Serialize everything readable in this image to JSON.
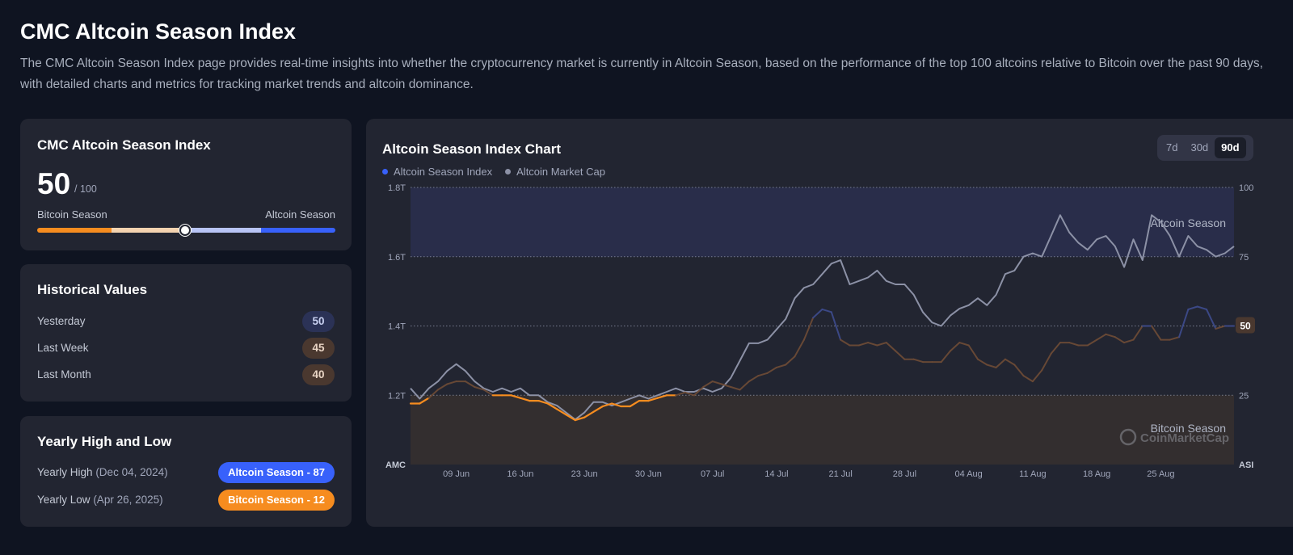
{
  "page": {
    "title": "CMC Altcoin Season Index",
    "description": "The CMC Altcoin Season Index page provides real-time insights into whether the cryptocurrency market is currently in Altcoin Season, based on the performance of the top 100 altcoins relative to Bitcoin over the past 90 days, with detailed charts and metrics for tracking market trends and altcoin dominance."
  },
  "index_card": {
    "title": "CMC Altcoin Season Index",
    "value": "50",
    "max": "/ 100",
    "left_label": "Bitcoin Season",
    "right_label": "Altcoin Season",
    "level": 0.5
  },
  "historical": {
    "title": "Historical Values",
    "rows": [
      {
        "label": "Yesterday",
        "value": "50"
      },
      {
        "label": "Last Week",
        "value": "45"
      },
      {
        "label": "Last Month",
        "value": "40"
      }
    ]
  },
  "yearly": {
    "title": "Yearly High and Low",
    "high": {
      "label": "Yearly High",
      "date": "(Dec 04, 2024)",
      "pill": "Altcoin Season - 87"
    },
    "low": {
      "label": "Yearly Low",
      "date": "(Apr 26, 2025)",
      "pill": "Bitcoin Season - 12"
    }
  },
  "chart": {
    "title": "Altcoin Season Index Chart",
    "ranges": [
      "7d",
      "30d",
      "90d"
    ],
    "active_range": "90d"
  },
  "colors": {
    "accent_blue": "#3861fb",
    "accent_orange": "#f68c1f",
    "market_cap_line": "#8c91a6",
    "altcoin_zone": "#2a2f4f",
    "bitcoin_zone": "#36302f"
  },
  "chart_data": {
    "type": "line",
    "legend": [
      "Altcoin Season Index",
      "Altcoin Market Cap"
    ],
    "x_ticks": [
      "09 Jun",
      "16 Jun",
      "23 Jun",
      "30 Jun",
      "07 Jul",
      "14 Jul",
      "21 Jul",
      "28 Jul",
      "04 Aug",
      "11 Aug",
      "18 Aug",
      "25 Aug"
    ],
    "y_left_ticks": [
      "1.8T",
      "1.6T",
      "1.4T",
      "1.2T"
    ],
    "y_left_axis_label": "AMC",
    "y_right_ticks": [
      "100",
      "75",
      "50",
      "25"
    ],
    "y_right_axis_label": "ASI",
    "zone_labels": {
      "top": "Altcoin Season",
      "bottom": "Bitcoin Season"
    },
    "current_value_label": "50",
    "watermark": "CoinMarketCap",
    "left_range": [
      1.0,
      1.8
    ],
    "right_range": [
      0,
      100
    ],
    "x_range": [
      "2025-06-04",
      "2025-09-02"
    ],
    "series": [
      {
        "name": "Altcoin Season Index",
        "points": [
          [
            "2025-06-04",
            22
          ],
          [
            "2025-06-05",
            22
          ],
          [
            "2025-06-06",
            24
          ],
          [
            "2025-06-07",
            27
          ],
          [
            "2025-06-08",
            29
          ],
          [
            "2025-06-09",
            30
          ],
          [
            "2025-06-10",
            30
          ],
          [
            "2025-06-11",
            28
          ],
          [
            "2025-06-12",
            27
          ],
          [
            "2025-06-13",
            25
          ],
          [
            "2025-06-14",
            25
          ],
          [
            "2025-06-15",
            25
          ],
          [
            "2025-06-16",
            24
          ],
          [
            "2025-06-17",
            23
          ],
          [
            "2025-06-18",
            23
          ],
          [
            "2025-06-19",
            22
          ],
          [
            "2025-06-20",
            20
          ],
          [
            "2025-06-21",
            18
          ],
          [
            "2025-06-22",
            16
          ],
          [
            "2025-06-23",
            17
          ],
          [
            "2025-06-24",
            19
          ],
          [
            "2025-06-25",
            21
          ],
          [
            "2025-06-26",
            22
          ],
          [
            "2025-06-27",
            21
          ],
          [
            "2025-06-28",
            21
          ],
          [
            "2025-06-29",
            23
          ],
          [
            "2025-06-30",
            23
          ],
          [
            "2025-07-01",
            24
          ],
          [
            "2025-07-02",
            25
          ],
          [
            "2025-07-03",
            25
          ],
          [
            "2025-07-04",
            26
          ],
          [
            "2025-07-05",
            25
          ],
          [
            "2025-07-06",
            28
          ],
          [
            "2025-07-07",
            30
          ],
          [
            "2025-07-08",
            29
          ],
          [
            "2025-07-09",
            28
          ],
          [
            "2025-07-10",
            27
          ],
          [
            "2025-07-11",
            30
          ],
          [
            "2025-07-12",
            32
          ],
          [
            "2025-07-13",
            33
          ],
          [
            "2025-07-14",
            35
          ],
          [
            "2025-07-15",
            36
          ],
          [
            "2025-07-16",
            39
          ],
          [
            "2025-07-17",
            45
          ],
          [
            "2025-07-18",
            53
          ],
          [
            "2025-07-19",
            56
          ],
          [
            "2025-07-20",
            55
          ],
          [
            "2025-07-21",
            45
          ],
          [
            "2025-07-22",
            43
          ],
          [
            "2025-07-23",
            43
          ],
          [
            "2025-07-24",
            44
          ],
          [
            "2025-07-25",
            43
          ],
          [
            "2025-07-26",
            44
          ],
          [
            "2025-07-27",
            41
          ],
          [
            "2025-07-28",
            38
          ],
          [
            "2025-07-29",
            38
          ],
          [
            "2025-07-30",
            37
          ],
          [
            "2025-07-31",
            37
          ],
          [
            "2025-08-01",
            37
          ],
          [
            "2025-08-02",
            41
          ],
          [
            "2025-08-03",
            44
          ],
          [
            "2025-08-04",
            43
          ],
          [
            "2025-08-05",
            38
          ],
          [
            "2025-08-06",
            36
          ],
          [
            "2025-08-07",
            35
          ],
          [
            "2025-08-08",
            38
          ],
          [
            "2025-08-09",
            36
          ],
          [
            "2025-08-10",
            32
          ],
          [
            "2025-08-11",
            30
          ],
          [
            "2025-08-12",
            34
          ],
          [
            "2025-08-13",
            40
          ],
          [
            "2025-08-14",
            44
          ],
          [
            "2025-08-15",
            44
          ],
          [
            "2025-08-16",
            43
          ],
          [
            "2025-08-17",
            43
          ],
          [
            "2025-08-18",
            45
          ],
          [
            "2025-08-19",
            47
          ],
          [
            "2025-08-20",
            46
          ],
          [
            "2025-08-21",
            44
          ],
          [
            "2025-08-22",
            45
          ],
          [
            "2025-08-23",
            50
          ],
          [
            "2025-08-24",
            50
          ],
          [
            "2025-08-25",
            45
          ],
          [
            "2025-08-26",
            45
          ],
          [
            "2025-08-27",
            46
          ],
          [
            "2025-08-28",
            56
          ],
          [
            "2025-08-29",
            57
          ],
          [
            "2025-08-30",
            56
          ],
          [
            "2025-08-31",
            49
          ],
          [
            "2025-09-01",
            50
          ],
          [
            "2025-09-02",
            50
          ]
        ]
      },
      {
        "name": "Altcoin Market Cap",
        "points": [
          [
            "2025-06-04",
            1.22
          ],
          [
            "2025-06-05",
            1.19
          ],
          [
            "2025-06-06",
            1.22
          ],
          [
            "2025-06-07",
            1.24
          ],
          [
            "2025-06-08",
            1.27
          ],
          [
            "2025-06-09",
            1.29
          ],
          [
            "2025-06-10",
            1.27
          ],
          [
            "2025-06-11",
            1.24
          ],
          [
            "2025-06-12",
            1.22
          ],
          [
            "2025-06-13",
            1.21
          ],
          [
            "2025-06-14",
            1.22
          ],
          [
            "2025-06-15",
            1.21
          ],
          [
            "2025-06-16",
            1.22
          ],
          [
            "2025-06-17",
            1.2
          ],
          [
            "2025-06-18",
            1.2
          ],
          [
            "2025-06-19",
            1.18
          ],
          [
            "2025-06-20",
            1.17
          ],
          [
            "2025-06-21",
            1.15
          ],
          [
            "2025-06-22",
            1.13
          ],
          [
            "2025-06-23",
            1.15
          ],
          [
            "2025-06-24",
            1.18
          ],
          [
            "2025-06-25",
            1.18
          ],
          [
            "2025-06-26",
            1.17
          ],
          [
            "2025-06-27",
            1.18
          ],
          [
            "2025-06-28",
            1.19
          ],
          [
            "2025-06-29",
            1.2
          ],
          [
            "2025-06-30",
            1.19
          ],
          [
            "2025-07-01",
            1.2
          ],
          [
            "2025-07-02",
            1.21
          ],
          [
            "2025-07-03",
            1.22
          ],
          [
            "2025-07-04",
            1.21
          ],
          [
            "2025-07-05",
            1.21
          ],
          [
            "2025-07-06",
            1.22
          ],
          [
            "2025-07-07",
            1.21
          ],
          [
            "2025-07-08",
            1.22
          ],
          [
            "2025-07-09",
            1.25
          ],
          [
            "2025-07-10",
            1.3
          ],
          [
            "2025-07-11",
            1.35
          ],
          [
            "2025-07-12",
            1.35
          ],
          [
            "2025-07-13",
            1.36
          ],
          [
            "2025-07-14",
            1.39
          ],
          [
            "2025-07-15",
            1.42
          ],
          [
            "2025-07-16",
            1.48
          ],
          [
            "2025-07-17",
            1.51
          ],
          [
            "2025-07-18",
            1.52
          ],
          [
            "2025-07-19",
            1.55
          ],
          [
            "2025-07-20",
            1.58
          ],
          [
            "2025-07-21",
            1.59
          ],
          [
            "2025-07-22",
            1.52
          ],
          [
            "2025-07-23",
            1.53
          ],
          [
            "2025-07-24",
            1.54
          ],
          [
            "2025-07-25",
            1.56
          ],
          [
            "2025-07-26",
            1.53
          ],
          [
            "2025-07-27",
            1.52
          ],
          [
            "2025-07-28",
            1.52
          ],
          [
            "2025-07-29",
            1.49
          ],
          [
            "2025-07-30",
            1.44
          ],
          [
            "2025-07-31",
            1.41
          ],
          [
            "2025-08-01",
            1.4
          ],
          [
            "2025-08-02",
            1.43
          ],
          [
            "2025-08-03",
            1.45
          ],
          [
            "2025-08-04",
            1.46
          ],
          [
            "2025-08-05",
            1.48
          ],
          [
            "2025-08-06",
            1.46
          ],
          [
            "2025-08-07",
            1.49
          ],
          [
            "2025-08-08",
            1.55
          ],
          [
            "2025-08-09",
            1.56
          ],
          [
            "2025-08-10",
            1.6
          ],
          [
            "2025-08-11",
            1.61
          ],
          [
            "2025-08-12",
            1.6
          ],
          [
            "2025-08-13",
            1.66
          ],
          [
            "2025-08-14",
            1.72
          ],
          [
            "2025-08-15",
            1.67
          ],
          [
            "2025-08-16",
            1.64
          ],
          [
            "2025-08-17",
            1.62
          ],
          [
            "2025-08-18",
            1.65
          ],
          [
            "2025-08-19",
            1.66
          ],
          [
            "2025-08-20",
            1.63
          ],
          [
            "2025-08-21",
            1.57
          ],
          [
            "2025-08-22",
            1.65
          ],
          [
            "2025-08-23",
            1.59
          ],
          [
            "2025-08-24",
            1.72
          ],
          [
            "2025-08-25",
            1.7
          ],
          [
            "2025-08-26",
            1.66
          ],
          [
            "2025-08-27",
            1.6
          ],
          [
            "2025-08-28",
            1.66
          ],
          [
            "2025-08-29",
            1.63
          ],
          [
            "2025-08-30",
            1.62
          ],
          [
            "2025-08-31",
            1.6
          ],
          [
            "2025-09-01",
            1.61
          ],
          [
            "2025-09-02",
            1.63
          ]
        ]
      }
    ]
  }
}
